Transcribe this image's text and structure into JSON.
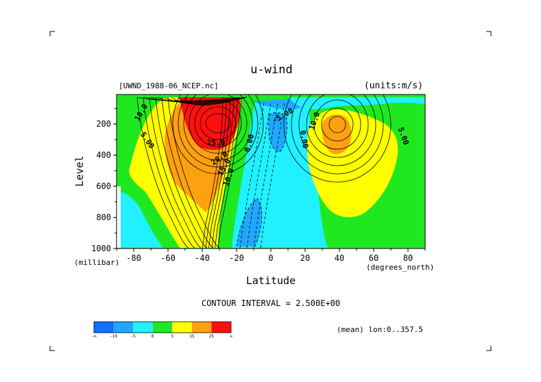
{
  "chart_data": {
    "type": "heatmap",
    "title": "u-wind",
    "file_label": "[UWND_1988-06_NCEP.nc]",
    "units_label": "(units:m/s)",
    "xlabel": "Latitude",
    "ylabel": "Level",
    "x_unit_label": "(degrees_north)",
    "y_unit_label": "(millibar)",
    "x_ticks": [
      -80,
      -60,
      -40,
      -20,
      0,
      20,
      40,
      60,
      80
    ],
    "y_ticks": [
      200,
      400,
      600,
      800,
      1000
    ],
    "xlim": [
      -90,
      90
    ],
    "ylim": [
      1000,
      10
    ],
    "y_reversed": true,
    "contour_interval_text": "CONTOUR INTERVAL = 2.500E+00",
    "subset_text": "(mean) lon:0..357.5",
    "contour_labels": [
      "10.0",
      "5.00",
      "25.0",
      "20.0",
      "15.0",
      "10.0",
      "0.00",
      "0.00",
      "-5.00",
      "10.0",
      "5.00"
    ],
    "colorbar": {
      "tick_labels": [
        "-∞",
        "-10",
        "-5",
        "0",
        "5",
        "15",
        "25",
        "∞"
      ],
      "colors": [
        "#1070ff",
        "#20a8ff",
        "#20f0ff",
        "#20e820",
        "#ffff00",
        "#ffa010",
        "#ff1010"
      ]
    },
    "colors": {
      "neg_strong": "#1070ff",
      "neg_mid": "#20a8ff",
      "neg_weak": "#20f0ff",
      "pos_weak": "#20e820",
      "pos_mid": "#ffff00",
      "pos_strong": "#ffa010",
      "pos_max": "#ff1010"
    },
    "jets": [
      {
        "name": "",
        "lat": -30,
        "level": 200,
        "max": 40
      },
      {
        "name": "",
        "lat": 38,
        "level": 200,
        "max": 22
      }
    ]
  }
}
